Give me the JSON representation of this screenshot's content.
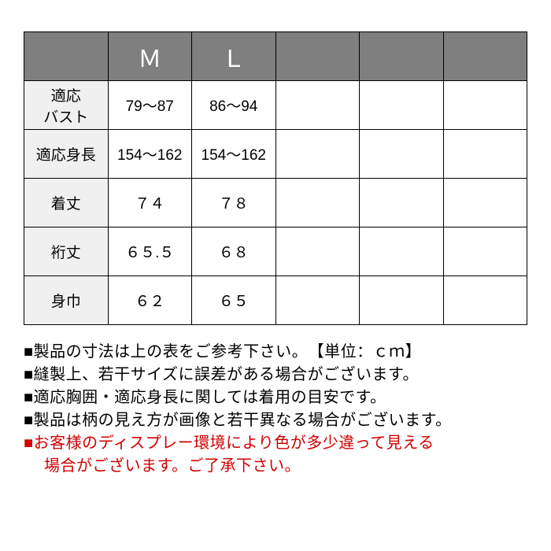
{
  "table": {
    "type": "table",
    "header_bg": "#7f7f7f",
    "header_fg": "#ffffff",
    "label_bg": "#f0f0f0",
    "border_color": "#000000",
    "columns": [
      "",
      "Ｍ",
      "Ｌ",
      "",
      "",
      ""
    ],
    "rows": [
      {
        "label": "適応\nバスト",
        "m": "79～87",
        "l": "86～94"
      },
      {
        "label": "適応身長",
        "m": "154～162",
        "l": "154～162"
      },
      {
        "label": "着丈",
        "m": "７４",
        "l": "７８"
      },
      {
        "label": "裄丈",
        "m": "６５.５",
        "l": "６８"
      },
      {
        "label": "身巾",
        "m": "６２",
        "l": "６５"
      }
    ]
  },
  "notes": {
    "lines": [
      {
        "t": "■製品の寸法は上の表をご参考下さい。　【単位：ｃｍ】",
        "red": false
      },
      {
        "t": "■縫製上、若干サイズに誤差がある場合がございます。",
        "red": false
      },
      {
        "t": "■適応胸囲・適応身長に関しては着用の目安です。",
        "red": false
      },
      {
        "t": "■製品は柄の見え方が画像と若干異なる場合がございます。",
        "red": false
      },
      {
        "t": "■お客様のディスプレー環境により色が多少違って見える",
        "red": true
      },
      {
        "t": "場合がございます。ご了承下さい。",
        "red": true,
        "indent": true
      }
    ]
  }
}
